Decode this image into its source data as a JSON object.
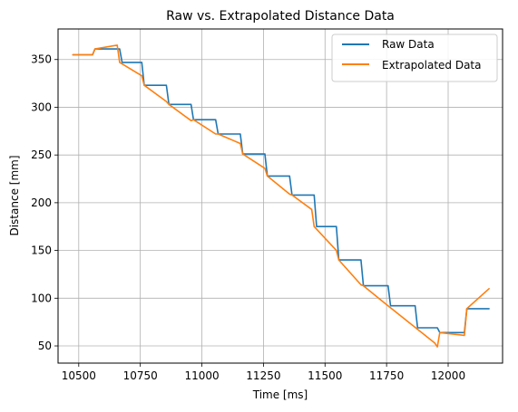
{
  "chart_data": {
    "type": "line",
    "title": "Raw vs. Extrapolated Distance Data",
    "xlabel": "Time [ms]",
    "ylabel": "Distance [mm]",
    "xlim": [
      10416,
      12221
    ],
    "ylim": [
      32,
      382
    ],
    "xticks": [
      10500,
      10750,
      11000,
      11250,
      11500,
      11750,
      12000
    ],
    "xtick_labels": [
      "10500",
      "10750",
      "11000",
      "11250",
      "11500",
      "11750",
      "12000"
    ],
    "yticks": [
      50,
      100,
      150,
      200,
      250,
      300,
      350
    ],
    "ytick_labels": [
      "50",
      "100",
      "150",
      "200",
      "250",
      "300",
      "350"
    ],
    "grid": true,
    "legend_position": "top-right",
    "series": [
      {
        "name": "Raw Data",
        "color": "#1f77b4",
        "x": [
          10476,
          10556,
          10566,
          10666,
          10676,
          10756,
          10766,
          10856,
          10866,
          10956,
          10966,
          11056,
          11066,
          11156,
          11166,
          11206,
          11216,
          11256,
          11266,
          11306,
          11316,
          11356,
          11366,
          11416,
          11426,
          11456,
          11466,
          11546,
          11556,
          11646,
          11656,
          11756,
          11766,
          11866,
          11876,
          11956,
          11966,
          12066,
          12076,
          12166
        ],
        "y": [
          355,
          355,
          361,
          361,
          347,
          347,
          323,
          323,
          303,
          303,
          287,
          287,
          272,
          272,
          251,
          251,
          251,
          251,
          228,
          228,
          228,
          228,
          208,
          208,
          208,
          208,
          175,
          175,
          140,
          140,
          113,
          113,
          92,
          92,
          69,
          69,
          64,
          64,
          89,
          89
        ]
      },
      {
        "name": "Extrapolated Data",
        "color": "#ff7f0e",
        "x": [
          10476,
          10556,
          10566,
          10656,
          10666,
          10756,
          10766,
          10856,
          10866,
          10956,
          10966,
          11056,
          11066,
          11156,
          11166,
          11256,
          11266,
          11356,
          11366,
          11446,
          11456,
          11546,
          11556,
          11646,
          11656,
          11746,
          11756,
          11946,
          11956,
          11966,
          12066,
          12076,
          12166
        ],
        "y": [
          355,
          355,
          361,
          365,
          347,
          333,
          323,
          306,
          303,
          286,
          287,
          272,
          272,
          262,
          251,
          236,
          228,
          209,
          208,
          193,
          175,
          150,
          140,
          114,
          113,
          94,
          92,
          53,
          49,
          64,
          61,
          89,
          110
        ]
      }
    ]
  }
}
